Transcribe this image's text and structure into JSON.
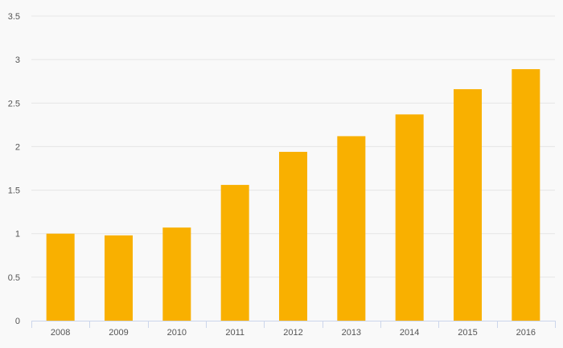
{
  "chart_data": {
    "type": "bar",
    "title": "",
    "xlabel": "",
    "ylabel": "",
    "categories": [
      "2008",
      "2009",
      "2010",
      "2011",
      "2012",
      "2013",
      "2014",
      "2015",
      "2016"
    ],
    "values": [
      1.0,
      0.98,
      1.07,
      1.56,
      1.94,
      2.12,
      2.37,
      2.66,
      2.89
    ],
    "ylim": [
      0,
      3.5
    ],
    "yticks": [
      "0",
      "0.5",
      "1",
      "1.5",
      "2",
      "2.5",
      "3",
      "3.5"
    ],
    "grid": "horizontal",
    "legend": "none",
    "bar_color": "#f9b000",
    "grid_color": "#e6e6e6",
    "axis_color": "#ccd6eb",
    "background": "#f9f9f9"
  }
}
